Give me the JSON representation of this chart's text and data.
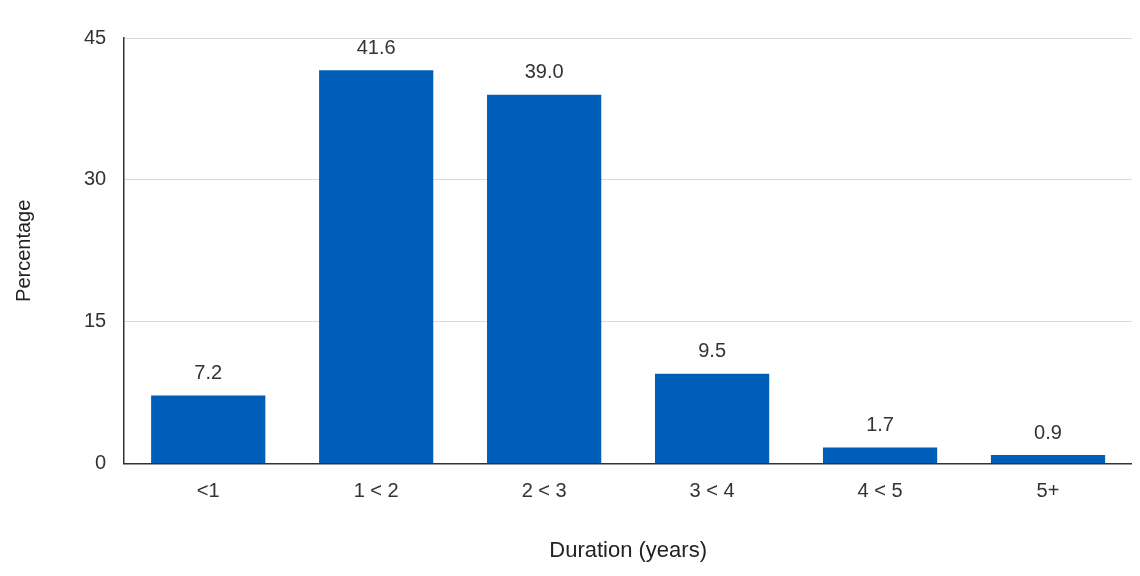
{
  "chart_data": {
    "type": "bar",
    "xlabel": "Duration (years)",
    "ylabel": "Percentage",
    "categories": [
      "<1",
      "1 < 2",
      "2 < 3",
      "3 < 4",
      "4 < 5",
      "5+"
    ],
    "values": [
      7.2,
      41.6,
      39.0,
      9.5,
      1.7,
      0.9
    ],
    "value_labels": [
      "7.2",
      "41.6",
      "39.0",
      "9.5",
      "1.7",
      "0.9"
    ],
    "color": "#005eb8",
    "ylim": [
      0,
      45
    ],
    "yticks": [
      0,
      15,
      30,
      45
    ],
    "grid": "y",
    "legend": false
  }
}
